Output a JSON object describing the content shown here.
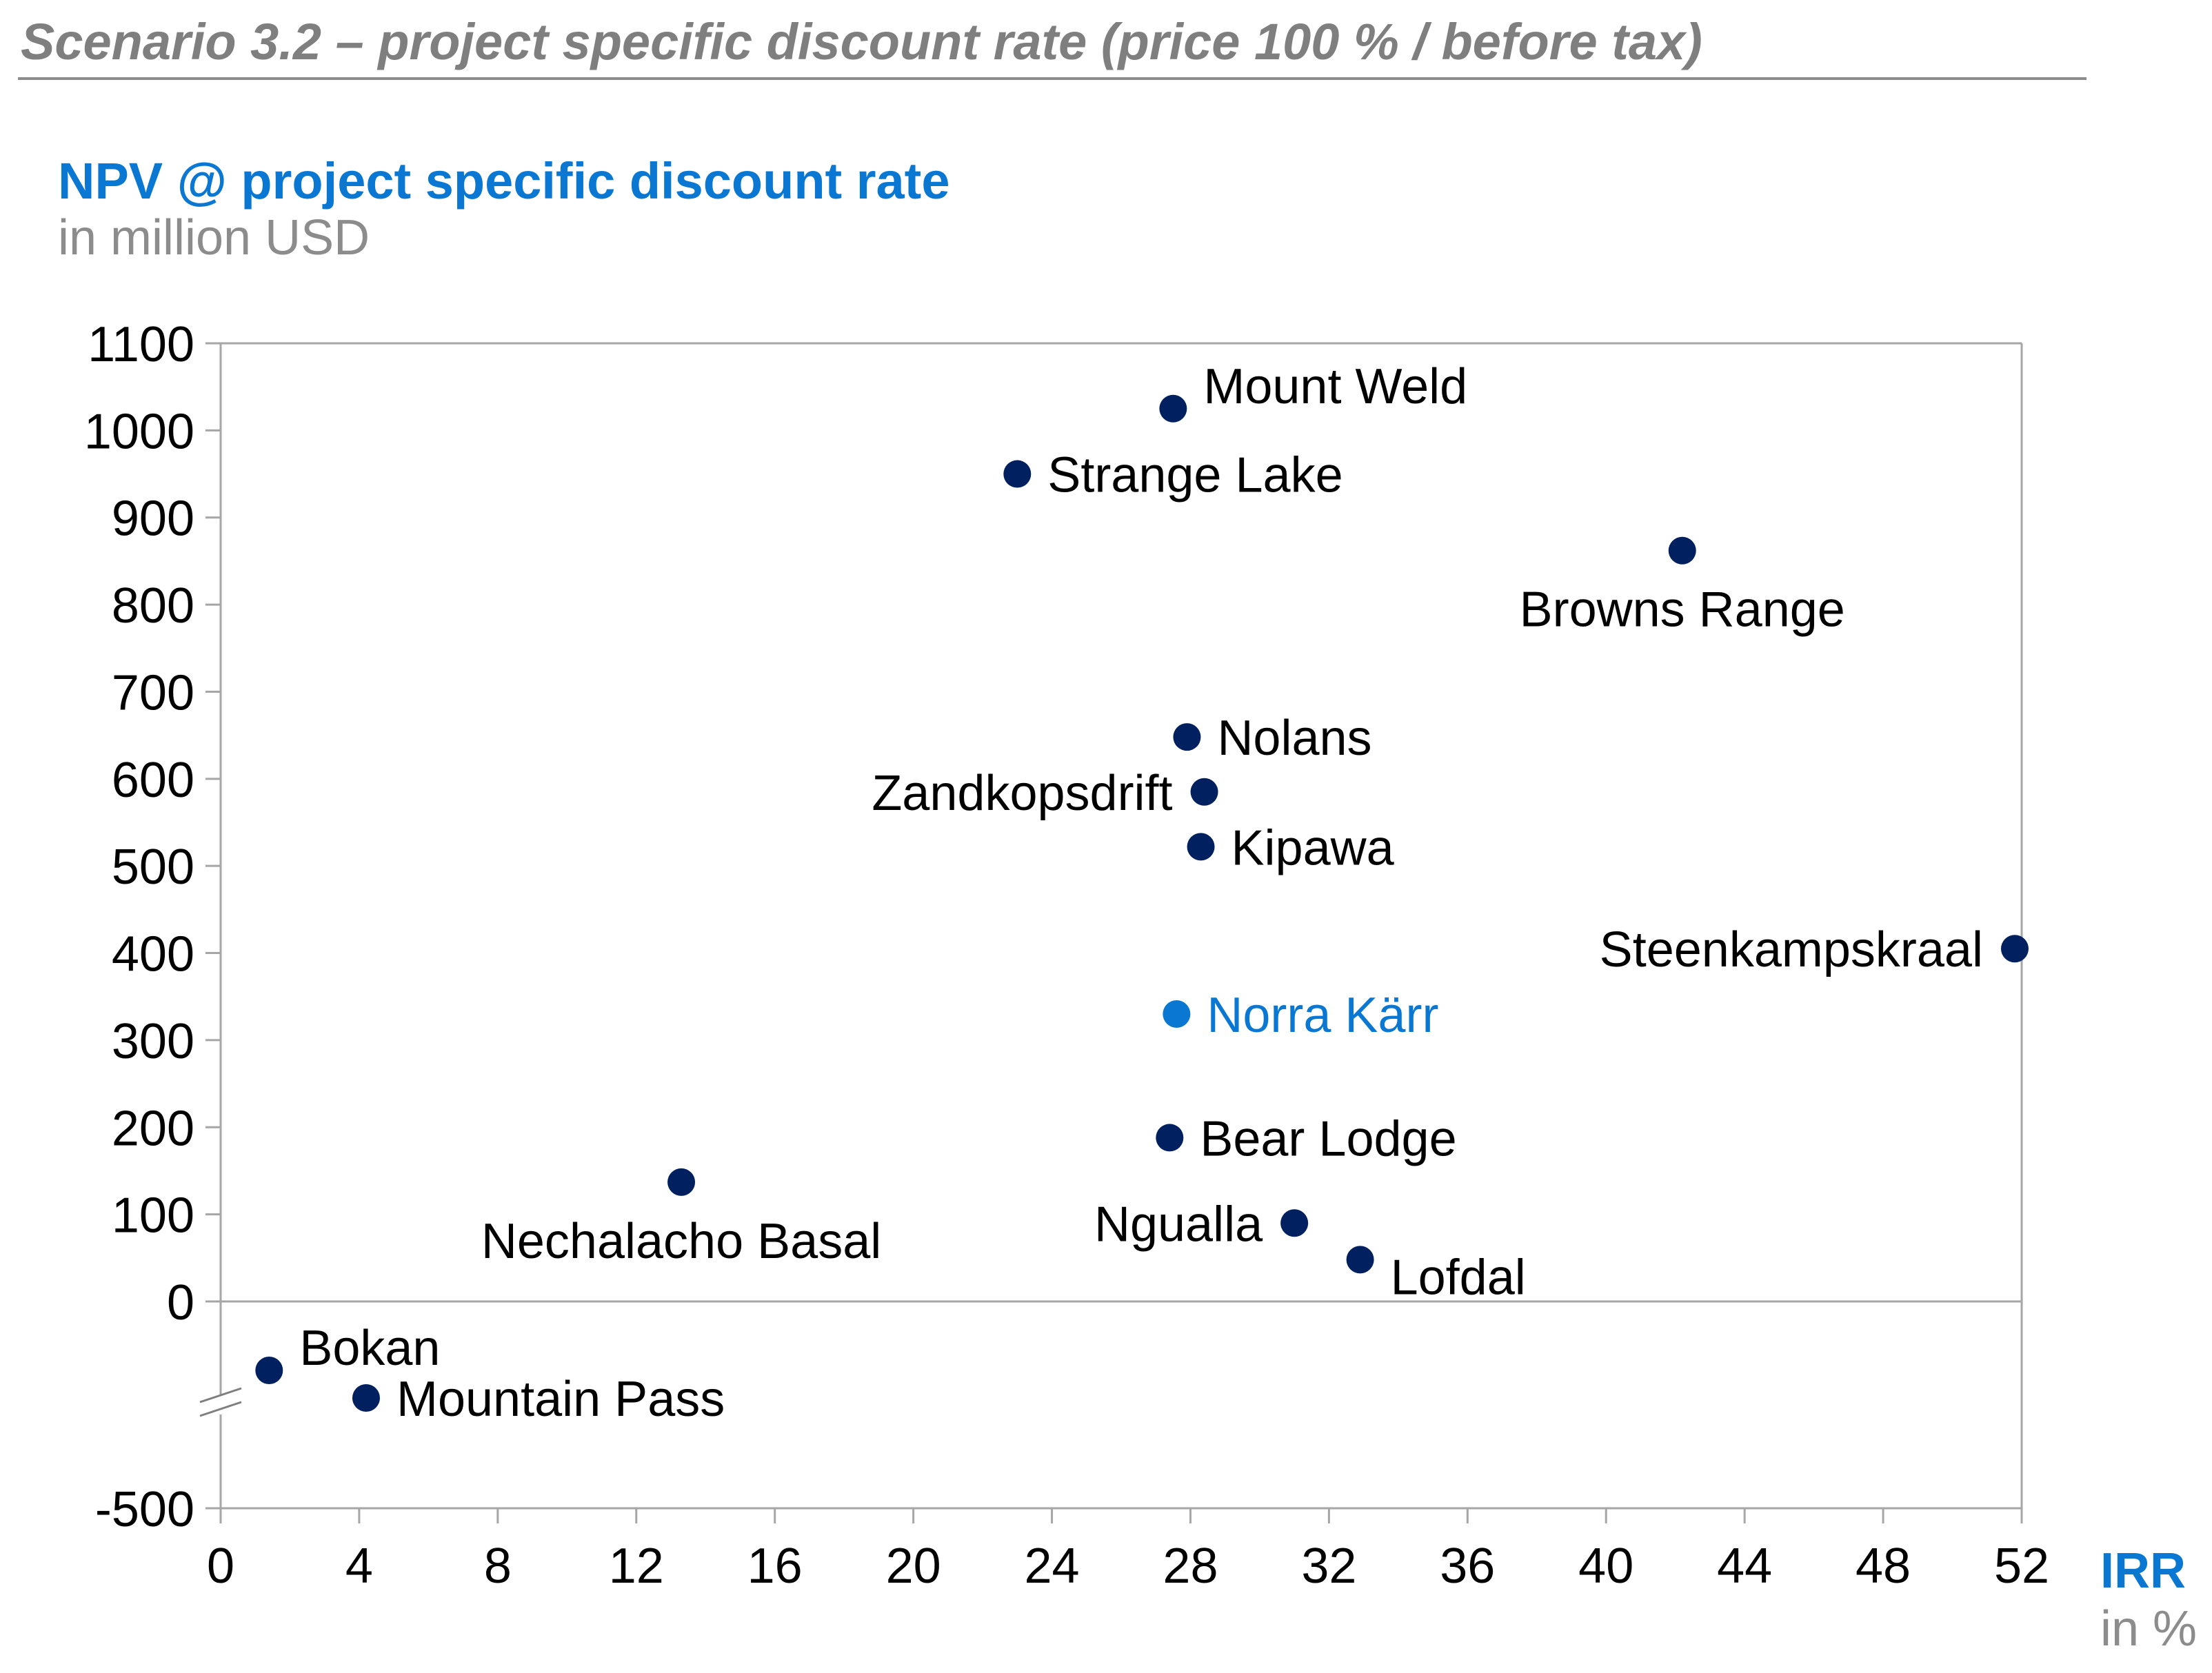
{
  "header": {
    "title": "Scenario 3.2 – project specific discount rate (price 100 % / before tax)"
  },
  "colors": {
    "accent": "#0a78d2",
    "marker": "#002060",
    "highlight": "#0a78d2",
    "muted": "#7f7f7f",
    "axis": "#a6a6a6"
  },
  "chart_data": {
    "type": "scatter",
    "title": "NPV @ project specific discount rate",
    "ylabel": "NPV @ project specific discount rate",
    "ylabel_unit": "in million USD",
    "xlabel": "IRR",
    "xlabel_unit": "in %",
    "xlim": [
      0,
      52
    ],
    "ylim": [
      -500,
      1100
    ],
    "axis_break": true,
    "xticks": [
      "0",
      "4",
      "8",
      "12",
      "16",
      "20",
      "24",
      "28",
      "32",
      "36",
      "40",
      "44",
      "48",
      "52"
    ],
    "yticks": [
      "1100",
      "1000",
      "900",
      "800",
      "700",
      "600",
      "500",
      "400",
      "300",
      "200",
      "100",
      "0",
      "-500"
    ],
    "points": [
      {
        "label": "Mount Weld",
        "x": 27.5,
        "y": 1025,
        "highlight": false,
        "label_pos": "upper-right"
      },
      {
        "label": "Strange Lake",
        "x": 23.0,
        "y": 950,
        "highlight": false,
        "label_pos": "right"
      },
      {
        "label": "Browns Range",
        "x": 42.2,
        "y": 862,
        "highlight": false,
        "label_pos": "below"
      },
      {
        "label": "Nolans",
        "x": 27.9,
        "y": 648,
        "highlight": false,
        "label_pos": "right"
      },
      {
        "label": "Zandkopsdrift",
        "x": 28.4,
        "y": 585,
        "highlight": false,
        "label_pos": "left"
      },
      {
        "label": "Kipawa",
        "x": 28.3,
        "y": 522,
        "highlight": false,
        "label_pos": "right"
      },
      {
        "label": "Steenkampskraal",
        "x": 51.8,
        "y": 405,
        "highlight": false,
        "label_pos": "left"
      },
      {
        "label": "Norra Kärr",
        "x": 27.6,
        "y": 330,
        "highlight": true,
        "label_pos": "right"
      },
      {
        "label": "Bear Lodge",
        "x": 27.4,
        "y": 188,
        "highlight": false,
        "label_pos": "right"
      },
      {
        "label": "Nechalacho Basal",
        "x": 13.3,
        "y": 137,
        "highlight": false,
        "label_pos": "below"
      },
      {
        "label": "Ngualla",
        "x": 31.0,
        "y": 90,
        "highlight": false,
        "label_pos": "left"
      },
      {
        "label": "Lofdal",
        "x": 32.9,
        "y": 48,
        "highlight": false,
        "label_pos": "lower-right"
      },
      {
        "label": "Bokan",
        "x": 1.4,
        "y": -100,
        "highlight": false,
        "label_pos": "upper-right"
      },
      {
        "label": "Mountain Pass",
        "x": 4.2,
        "y": -140,
        "highlight": false,
        "label_pos": "right"
      }
    ]
  }
}
